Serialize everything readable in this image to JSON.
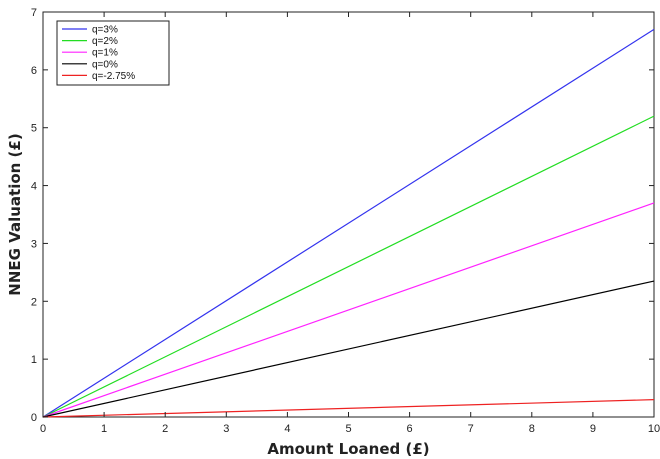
{
  "chart_data": {
    "type": "line",
    "title": "",
    "xlabel": "Amount Loaned (£)",
    "ylabel": "NNEG Valuation (£)",
    "xlim": [
      0,
      10
    ],
    "ylim": [
      0,
      7
    ],
    "xticks": [
      "0",
      "1",
      "2",
      "3",
      "4",
      "5",
      "6",
      "7",
      "8",
      "9",
      "10"
    ],
    "yticks": [
      "0",
      "1",
      "2",
      "3",
      "4",
      "5",
      "6",
      "7"
    ],
    "grid": false,
    "legend_position": "top-left",
    "series": [
      {
        "name": "q=3%",
        "color": "#3333ee",
        "x": [
          0,
          10
        ],
        "y": [
          0,
          6.7
        ]
      },
      {
        "name": "q=2%",
        "color": "#22dd22",
        "x": [
          0,
          10
        ],
        "y": [
          0,
          5.2
        ]
      },
      {
        "name": "q=1%",
        "color": "#ff22ff",
        "x": [
          0,
          10
        ],
        "y": [
          0,
          3.7
        ]
      },
      {
        "name": "q=0%",
        "color": "#000000",
        "x": [
          0,
          10
        ],
        "y": [
          0,
          2.35
        ]
      },
      {
        "name": "q=-2.75%",
        "color": "#ee2222",
        "x": [
          0,
          10
        ],
        "y": [
          0,
          0.3
        ]
      }
    ]
  }
}
